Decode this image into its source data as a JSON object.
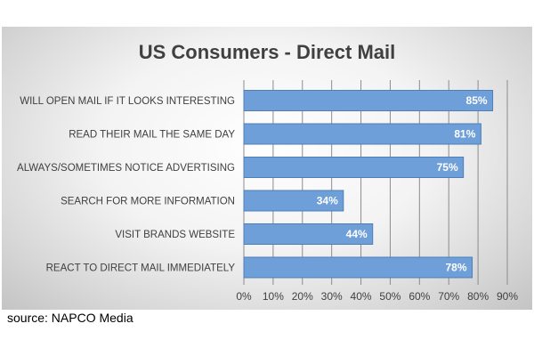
{
  "chart_data": {
    "type": "bar",
    "orientation": "horizontal",
    "title": "US Consumers - Direct Mail",
    "categories": [
      "WILL OPEN MAIL IF IT LOOKS INTERESTING",
      "READ THEIR MAIL THE SAME DAY",
      "ALWAYS/SOMETIMES NOTICE ADVERTISING",
      "SEARCH FOR MORE INFORMATION",
      "VISIT BRANDS WEBSITE",
      "REACT TO DIRECT MAIL IMMEDIATELY"
    ],
    "values": [
      85,
      81,
      75,
      34,
      44,
      78
    ],
    "data_labels": [
      "85%",
      "81%",
      "75%",
      "34%",
      "44%",
      "78%"
    ],
    "xlim": [
      0,
      90
    ],
    "x_ticks": [
      "0%",
      "10%",
      "20%",
      "30%",
      "40%",
      "50%",
      "60%",
      "70%",
      "80%",
      "90%"
    ],
    "grid": "vertical",
    "bar_color": "#6f9fd8",
    "bar_edge_color": "#4f7fb8",
    "grid_color": "#8c8c8c"
  },
  "source": "source: NAPCO Media"
}
